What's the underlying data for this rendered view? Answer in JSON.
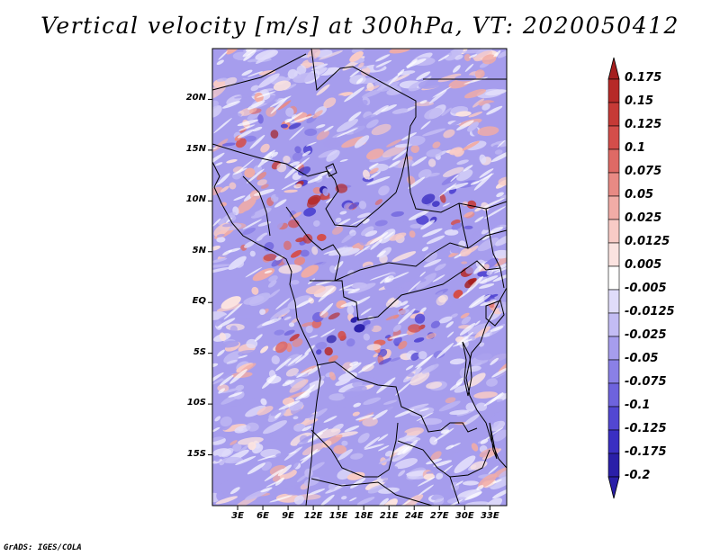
{
  "title": "Vertical velocity [m/s] at 300hPa, VT: 2020050412",
  "footer_credit": "GrADS: IGES/COLA",
  "map": {
    "variable": "Vertical velocity",
    "units": "m/s",
    "level": "300hPa",
    "valid_time": "2020050412",
    "lat_range": [
      -20,
      25
    ],
    "lon_range": [
      0,
      35
    ],
    "lat_ticks": [
      {
        "value": 20,
        "label": "20N"
      },
      {
        "value": 15,
        "label": "15N"
      },
      {
        "value": 10,
        "label": "10N"
      },
      {
        "value": 5,
        "label": "5N"
      },
      {
        "value": 0,
        "label": "EQ"
      },
      {
        "value": -5,
        "label": "5S"
      },
      {
        "value": -10,
        "label": "10S"
      },
      {
        "value": -15,
        "label": "15S"
      }
    ],
    "lon_ticks": [
      {
        "value": 3,
        "label": "3E"
      },
      {
        "value": 6,
        "label": "6E"
      },
      {
        "value": 9,
        "label": "9E"
      },
      {
        "value": 12,
        "label": "12E"
      },
      {
        "value": 15,
        "label": "15E"
      },
      {
        "value": 18,
        "label": "18E"
      },
      {
        "value": 21,
        "label": "21E"
      },
      {
        "value": 24,
        "label": "24E"
      },
      {
        "value": 27,
        "label": "27E"
      },
      {
        "value": 30,
        "label": "30E"
      },
      {
        "value": 33,
        "label": "33E"
      }
    ]
  },
  "colorbar": {
    "levels": [
      {
        "label": "0.175",
        "color": "#a51e1e"
      },
      {
        "label": "0.15",
        "color": "#b62a28"
      },
      {
        "label": "0.125",
        "color": "#c63a36"
      },
      {
        "label": "0.1",
        "color": "#d44e4a"
      },
      {
        "label": "0.075",
        "color": "#de6a65"
      },
      {
        "label": "0.05",
        "color": "#e88a84"
      },
      {
        "label": "0.025",
        "color": "#f1aca6"
      },
      {
        "label": "0.0125",
        "color": "#f8cbc6"
      },
      {
        "label": "0.005",
        "color": "#fbe3e0"
      },
      {
        "label": "-0.005",
        "color": "#ffffff"
      },
      {
        "label": "-0.0125",
        "color": "#e0dcfa"
      },
      {
        "label": "-0.025",
        "color": "#c3bcf4"
      },
      {
        "label": "-0.05",
        "color": "#a69ded"
      },
      {
        "label": "-0.075",
        "color": "#8a80e6"
      },
      {
        "label": "-0.1",
        "color": "#6e63dd"
      },
      {
        "label": "-0.125",
        "color": "#5247d2"
      },
      {
        "label": "-0.175",
        "color": "#3a2fc2"
      },
      {
        "label": "-0.2",
        "color": "#2a1fa8"
      }
    ],
    "top_arrow_color": "#a51e1e",
    "bottom_arrow_color": "#2a1fa8",
    "bottom_bin_color": "#2a1fa8"
  }
}
